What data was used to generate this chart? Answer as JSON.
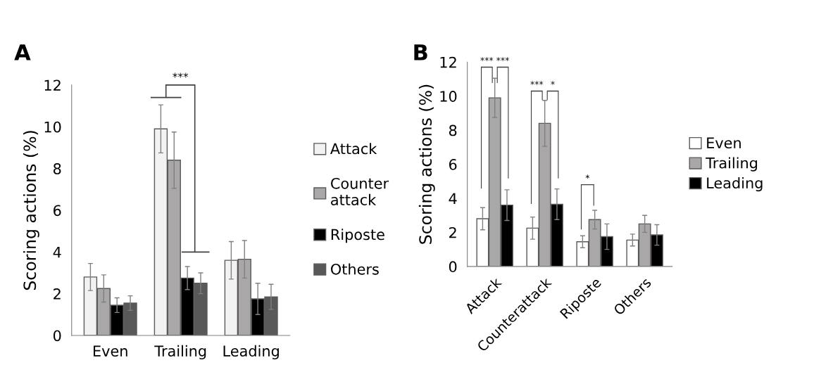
{
  "chart_data": [
    {
      "type": "bar",
      "title": "A",
      "ylabel": "Scoring actions (%)",
      "categories": [
        "Even",
        "Trailing",
        "Leading"
      ],
      "ylim": [
        0,
        12
      ],
      "yticks": [
        0,
        2,
        4,
        6,
        8,
        10,
        12
      ],
      "grid": false,
      "legend": "right",
      "series": [
        {
          "name": "Attack",
          "color": "#f2f2f2",
          "values": [
            2.8,
            9.9,
            3.6
          ],
          "errors": [
            0.65,
            1.15,
            0.9
          ]
        },
        {
          "name": "Counter\nattack",
          "color": "#a9a7a7",
          "values": [
            2.25,
            8.4,
            3.65
          ],
          "errors": [
            0.65,
            1.35,
            0.9
          ]
        },
        {
          "name": "Riposte",
          "color": "#000000",
          "values": [
            1.45,
            2.75,
            1.75
          ],
          "errors": [
            0.35,
            0.55,
            0.75
          ]
        },
        {
          "name": "Others",
          "color": "#595959",
          "values": [
            1.55,
            2.5,
            1.85
          ],
          "errors": [
            0.35,
            0.5,
            0.6
          ]
        }
      ],
      "annotations": [
        "***"
      ]
    },
    {
      "type": "bar",
      "title": "B",
      "ylabel": "Scoring actions (%)",
      "categories": [
        "Attack",
        "Counterattack",
        "Riposte",
        "Others"
      ],
      "ylim": [
        0,
        12
      ],
      "yticks": [
        0,
        2,
        4,
        6,
        8,
        10,
        12
      ],
      "grid": false,
      "legend": "right",
      "series": [
        {
          "name": "Even",
          "color": "#ffffff",
          "values": [
            2.8,
            2.25,
            1.45,
            1.55
          ],
          "errors": [
            0.65,
            0.65,
            0.35,
            0.35
          ]
        },
        {
          "name": "Trailing",
          "color": "#a9a7a7",
          "values": [
            9.9,
            8.4,
            2.75,
            2.5
          ],
          "errors": [
            1.15,
            1.35,
            0.55,
            0.5
          ]
        },
        {
          "name": "Leading",
          "color": "#000000",
          "values": [
            3.6,
            3.65,
            1.75,
            1.85
          ],
          "errors": [
            0.9,
            0.9,
            0.75,
            0.6
          ]
        }
      ],
      "annotations": [
        "***",
        "***",
        "***",
        "*",
        "*"
      ]
    }
  ]
}
